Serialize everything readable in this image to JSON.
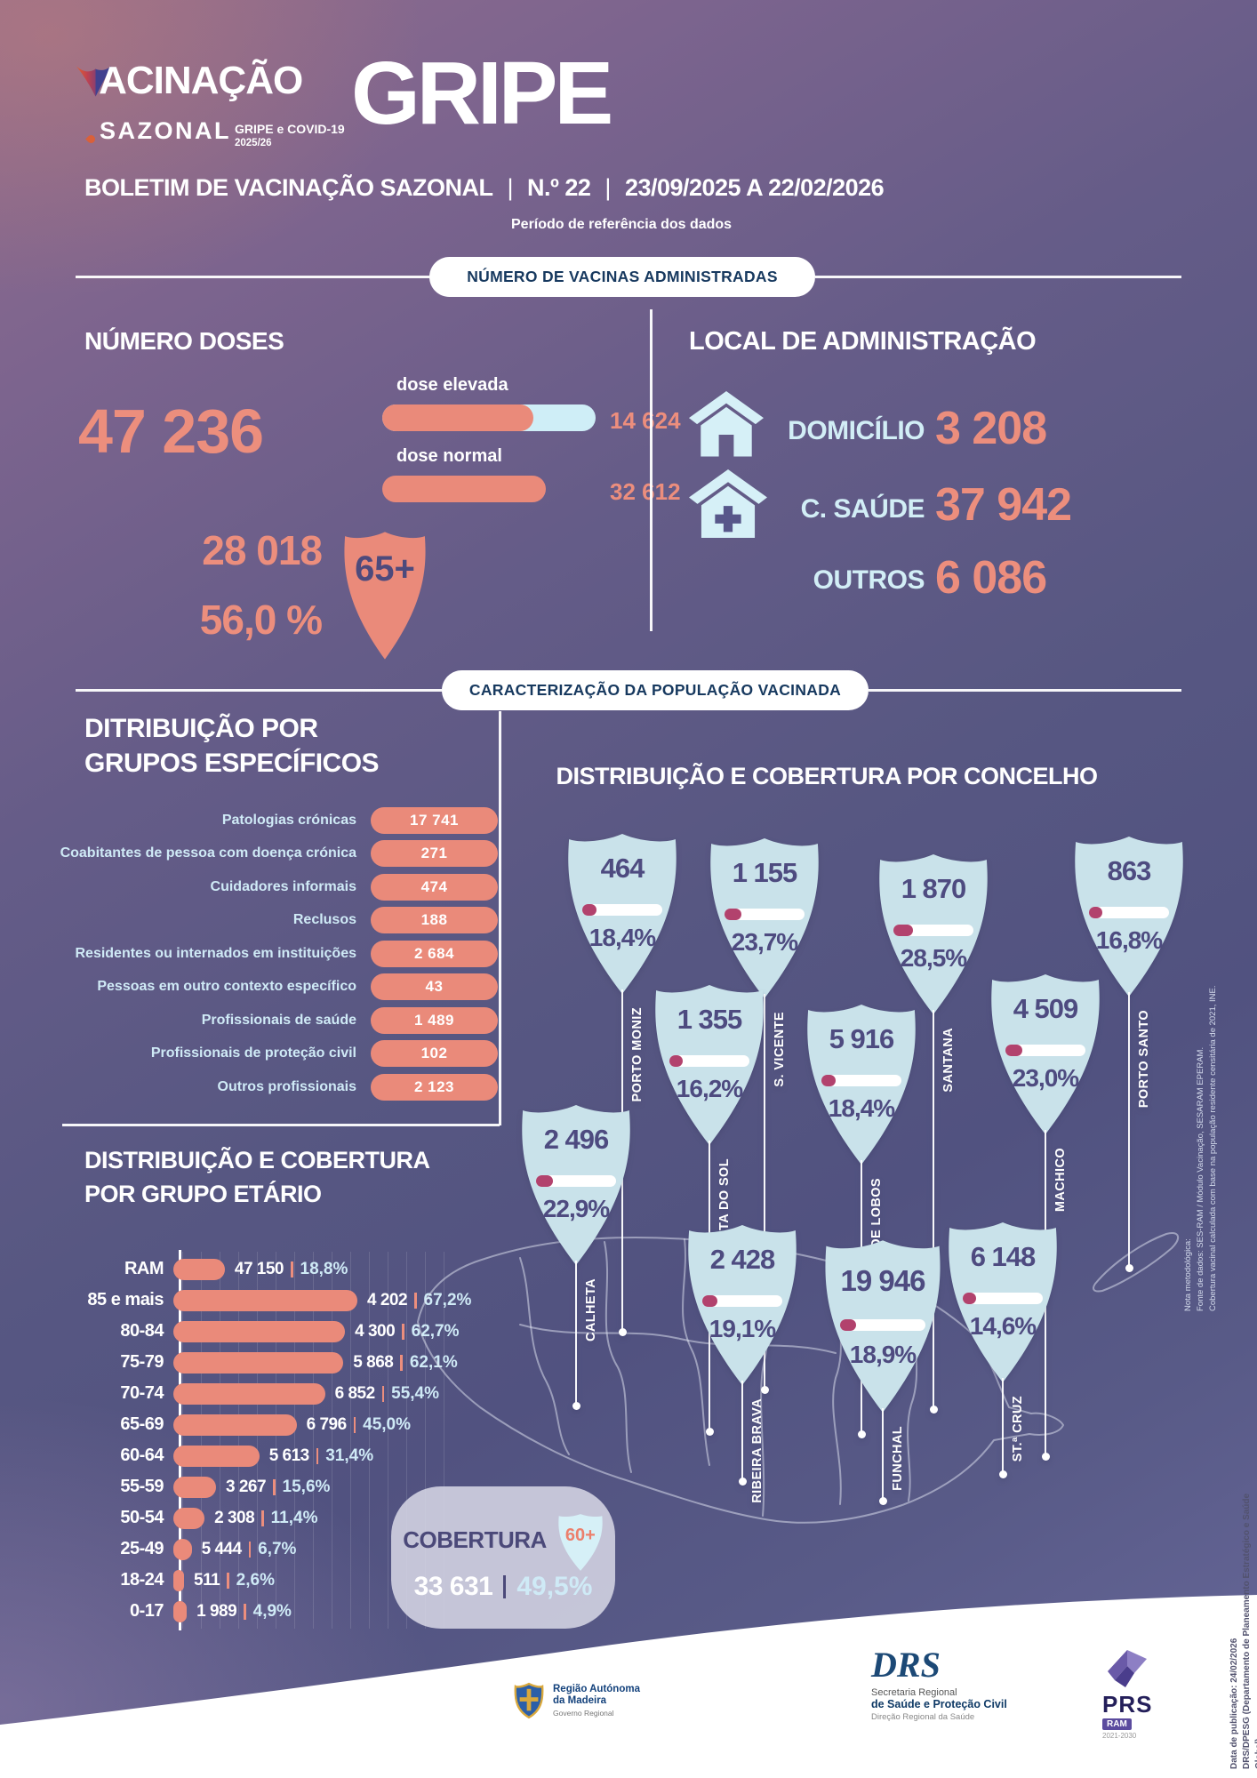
{
  "header": {
    "brand_title": "VACINAÇÃO",
    "brand_subtitle": "SAZONAL",
    "brand_tag_line1": "GRIPE e COVID-19",
    "brand_tag_line2": "2025/26",
    "page_title": "GRIPE",
    "bulletin_title": "BOLETIM DE VACINAÇÃO SAZONAL",
    "bulletin_number": "N.º 22",
    "bulletin_period": "23/09/2025 A 22/02/2026",
    "period_caption": "Período de referência dos dados"
  },
  "section_vaccines": {
    "banner": "NÚMERO DE VACINAS ADMINISTRADAS",
    "doses": {
      "title": "NÚMERO DOSES",
      "total": "47 236",
      "dose_high_label": "dose elevada",
      "dose_high_value": "14 624",
      "dose_normal_label": "dose normal",
      "dose_normal_value": "32 612",
      "age65_count": "28 018",
      "age65_pct": "56,0 %",
      "age65_badge": "65+"
    },
    "location": {
      "title": "LOCAL DE ADMINISTRAÇÃO",
      "items": [
        {
          "label": "DOMICÍLIO",
          "value": "3 208",
          "icon": "house-icon"
        },
        {
          "label": "C. SAÚDE",
          "value": "37 942",
          "icon": "health-center-icon"
        },
        {
          "label": "OUTROS",
          "value": "6 086",
          "icon": "none"
        }
      ]
    }
  },
  "section_population": {
    "banner": "CARACTERIZAÇÃO DA POPULAÇÃO VACINADA",
    "groups": {
      "title_line1": "DITRIBUIÇÃO POR",
      "title_line2": "GRUPOS ESPECÍFICOS",
      "items": [
        {
          "label": "Patologias crónicas",
          "value": "17 741"
        },
        {
          "label": "Coabitantes de pessoa com doença crónica",
          "value": "271"
        },
        {
          "label": "Cuidadores informais",
          "value": "474"
        },
        {
          "label": "Reclusos",
          "value": "188"
        },
        {
          "label": "Residentes ou internados em instituições",
          "value": "2 684"
        },
        {
          "label": "Pessoas em outro contexto específico",
          "value": "43"
        },
        {
          "label": "Profissionais de saúde",
          "value": "1 489"
        },
        {
          "label": "Profissionais de proteção civil",
          "value": "102"
        },
        {
          "label": "Outros profissionais",
          "value": "2 123"
        }
      ]
    },
    "age_chart": {
      "title_line1": "DISTRIBUIÇÃO E COBERTURA",
      "title_line2": "POR GRUPO ETÁRIO",
      "rows": [
        {
          "label": "RAM",
          "count": "47 150",
          "pct": "18,8%",
          "pct_num": 18.8
        },
        {
          "label": "85 e mais",
          "count": "4 202",
          "pct": "67,2%",
          "pct_num": 67.2
        },
        {
          "label": "80-84",
          "count": "4 300",
          "pct": "62,7%",
          "pct_num": 62.7
        },
        {
          "label": "75-79",
          "count": "5 868",
          "pct": "62,1%",
          "pct_num": 62.1
        },
        {
          "label": "70-74",
          "count": "6 852",
          "pct": "55,4%",
          "pct_num": 55.4
        },
        {
          "label": "65-69",
          "count": "6 796",
          "pct": "45,0%",
          "pct_num": 45.0
        },
        {
          "label": "60-64",
          "count": "5 613",
          "pct": "31,4%",
          "pct_num": 31.4
        },
        {
          "label": "55-59",
          "count": "3 267",
          "pct": "15,6%",
          "pct_num": 15.6
        },
        {
          "label": "50-54",
          "count": "2 308",
          "pct": "11,4%",
          "pct_num": 11.4
        },
        {
          "label": "25-49",
          "count": "5 444",
          "pct": "6,7%",
          "pct_num": 6.7
        },
        {
          "label": "18-24",
          "count": "511",
          "pct": "2,6%",
          "pct_num": 2.6
        },
        {
          "label": "0-17",
          "count": "1 989",
          "pct": "4,9%",
          "pct_num": 4.9
        }
      ]
    },
    "coverage60": {
      "label": "COBERTURA",
      "badge": "60+",
      "count": "33 631",
      "pct": "49,5%"
    },
    "concelho": {
      "title": "DISTRIBUIÇÃO E COBERTURA POR CONCELHO",
      "municipalities": [
        {
          "name": "PORTO MONIZ",
          "count": "464",
          "pct": "18,4%",
          "pct_num": 18.4
        },
        {
          "name": "S. VICENTE",
          "count": "1 155",
          "pct": "23,7%",
          "pct_num": 23.7
        },
        {
          "name": "SANTANA",
          "count": "1 870",
          "pct": "28,5%",
          "pct_num": 28.5
        },
        {
          "name": "PORTO SANTO",
          "count": "863",
          "pct": "16,8%",
          "pct_num": 16.8
        },
        {
          "name": "PONTA DO SOL",
          "count": "1 355",
          "pct": "16,2%",
          "pct_num": 16.2
        },
        {
          "name": "CÂMARA DE LOBOS",
          "count": "5 916",
          "pct": "18,4%",
          "pct_num": 18.4
        },
        {
          "name": "MACHICO",
          "count": "4 509",
          "pct": "23,0%",
          "pct_num": 23.0
        },
        {
          "name": "CALHETA",
          "count": "2 496",
          "pct": "22,9%",
          "pct_num": 22.9
        },
        {
          "name": "RIBEIRA BRAVA",
          "count": "2 428",
          "pct": "19,1%",
          "pct_num": 19.1
        },
        {
          "name": "FUNCHAL",
          "count": "19 946",
          "pct": "18,9%",
          "pct_num": 18.9
        },
        {
          "name": "ST.ª CRUZ",
          "count": "6 148",
          "pct": "14,6%",
          "pct_num": 14.6
        }
      ],
      "note": "Nota metodológica:\nFonte de dados: SES-RAM / Módulo Vacinação, SESARAM EPERAM.\nCobertura vacinal calculada com base na população residente censitária de 2021, INE."
    }
  },
  "footer": {
    "ram_line1": "Região Aut​ónoma",
    "ram_line2": "da Madeira",
    "ram_line3": "Governo Regional",
    "drs_logo": "DRS",
    "drs_line1": "Secretaria Regional",
    "drs_line2": "de Saúde e Proteção Civil",
    "drs_line3": "Direção Regional da Saúde",
    "prs_logo": "PRS",
    "prs_ram": "RAM",
    "prs_years": "2021-2030",
    "publication": "Data de publicação: 24/02/2026\nDRS/DPESG (Departamento de Planeamento Estratégico e Saúde Global)"
  },
  "colors": {
    "salmon": "#EA8A7A",
    "light_blue": "#D2EEF6",
    "navy_banner_text": "#17395F",
    "shield_fill": "#C9E2EA",
    "shield_text": "#4E4B80",
    "progress_fill": "#B2426D",
    "background_purple": "#575782"
  },
  "chart_data": [
    {
      "type": "bar",
      "title": "NÚMERO DOSES",
      "total": 47236,
      "categories": [
        "dose elevada",
        "dose normal"
      ],
      "values": [
        14624,
        32612
      ],
      "highlight": {
        "label": "65+",
        "count": 28018,
        "coverage_pct": 56.0
      }
    },
    {
      "type": "bar",
      "title": "LOCAL DE ADMINISTRAÇÃO",
      "categories": [
        "DOMICÍLIO",
        "C. SAÚDE",
        "OUTROS"
      ],
      "values": [
        3208,
        37942,
        6086
      ]
    },
    {
      "type": "bar",
      "title": "DITRIBUIÇÃO POR GRUPOS ESPECÍFICOS",
      "categories": [
        "Patologias crónicas",
        "Coabitantes de pessoa com doença crónica",
        "Cuidadores informais",
        "Reclusos",
        "Residentes ou internados em instituições",
        "Pessoas em outro contexto específico",
        "Profissionais de saúde",
        "Profissionais de proteção civil",
        "Outros profissionais"
      ],
      "values": [
        17741,
        271,
        474,
        188,
        2684,
        43,
        1489,
        102,
        2123
      ]
    },
    {
      "type": "bar",
      "title": "DISTRIBUIÇÃO E COBERTURA POR GRUPO ETÁRIO",
      "categories": [
        "RAM",
        "85 e mais",
        "80-84",
        "75-79",
        "70-74",
        "65-69",
        "60-64",
        "55-59",
        "50-54",
        "25-49",
        "18-24",
        "0-17"
      ],
      "series": [
        {
          "name": "doses administradas",
          "values": [
            47150,
            4202,
            4300,
            5868,
            6852,
            6796,
            5613,
            3267,
            2308,
            5444,
            511,
            1989
          ]
        },
        {
          "name": "cobertura %",
          "values": [
            18.8,
            67.2,
            62.7,
            62.1,
            55.4,
            45.0,
            31.4,
            15.6,
            11.4,
            6.7,
            2.6,
            4.9
          ]
        }
      ],
      "grid": true,
      "legend_position": "none",
      "note": "bar length encodes cobertura %"
    },
    {
      "type": "bar",
      "title": "COBERTURA 60+",
      "categories": [
        "60+"
      ],
      "series": [
        {
          "name": "doses administradas",
          "values": [
            33631
          ]
        },
        {
          "name": "cobertura %",
          "values": [
            49.5
          ]
        }
      ]
    },
    {
      "type": "map",
      "title": "DISTRIBUIÇÃO E COBERTURA POR CONCELHO",
      "categories": [
        "PORTO MONIZ",
        "S. VICENTE",
        "SANTANA",
        "PORTO SANTO",
        "PONTA DO SOL",
        "CÂMARA DE LOBOS",
        "MACHICO",
        "CALHETA",
        "RIBEIRA BRAVA",
        "FUNCHAL",
        "ST.ª CRUZ"
      ],
      "series": [
        {
          "name": "doses administradas",
          "values": [
            464,
            1155,
            1870,
            863,
            1355,
            5916,
            4509,
            2496,
            2428,
            19946,
            6148
          ]
        },
        {
          "name": "cobertura %",
          "values": [
            18.4,
            23.7,
            28.5,
            16.8,
            16.2,
            18.4,
            23.0,
            22.9,
            19.1,
            18.9,
            14.6
          ]
        }
      ]
    }
  ]
}
